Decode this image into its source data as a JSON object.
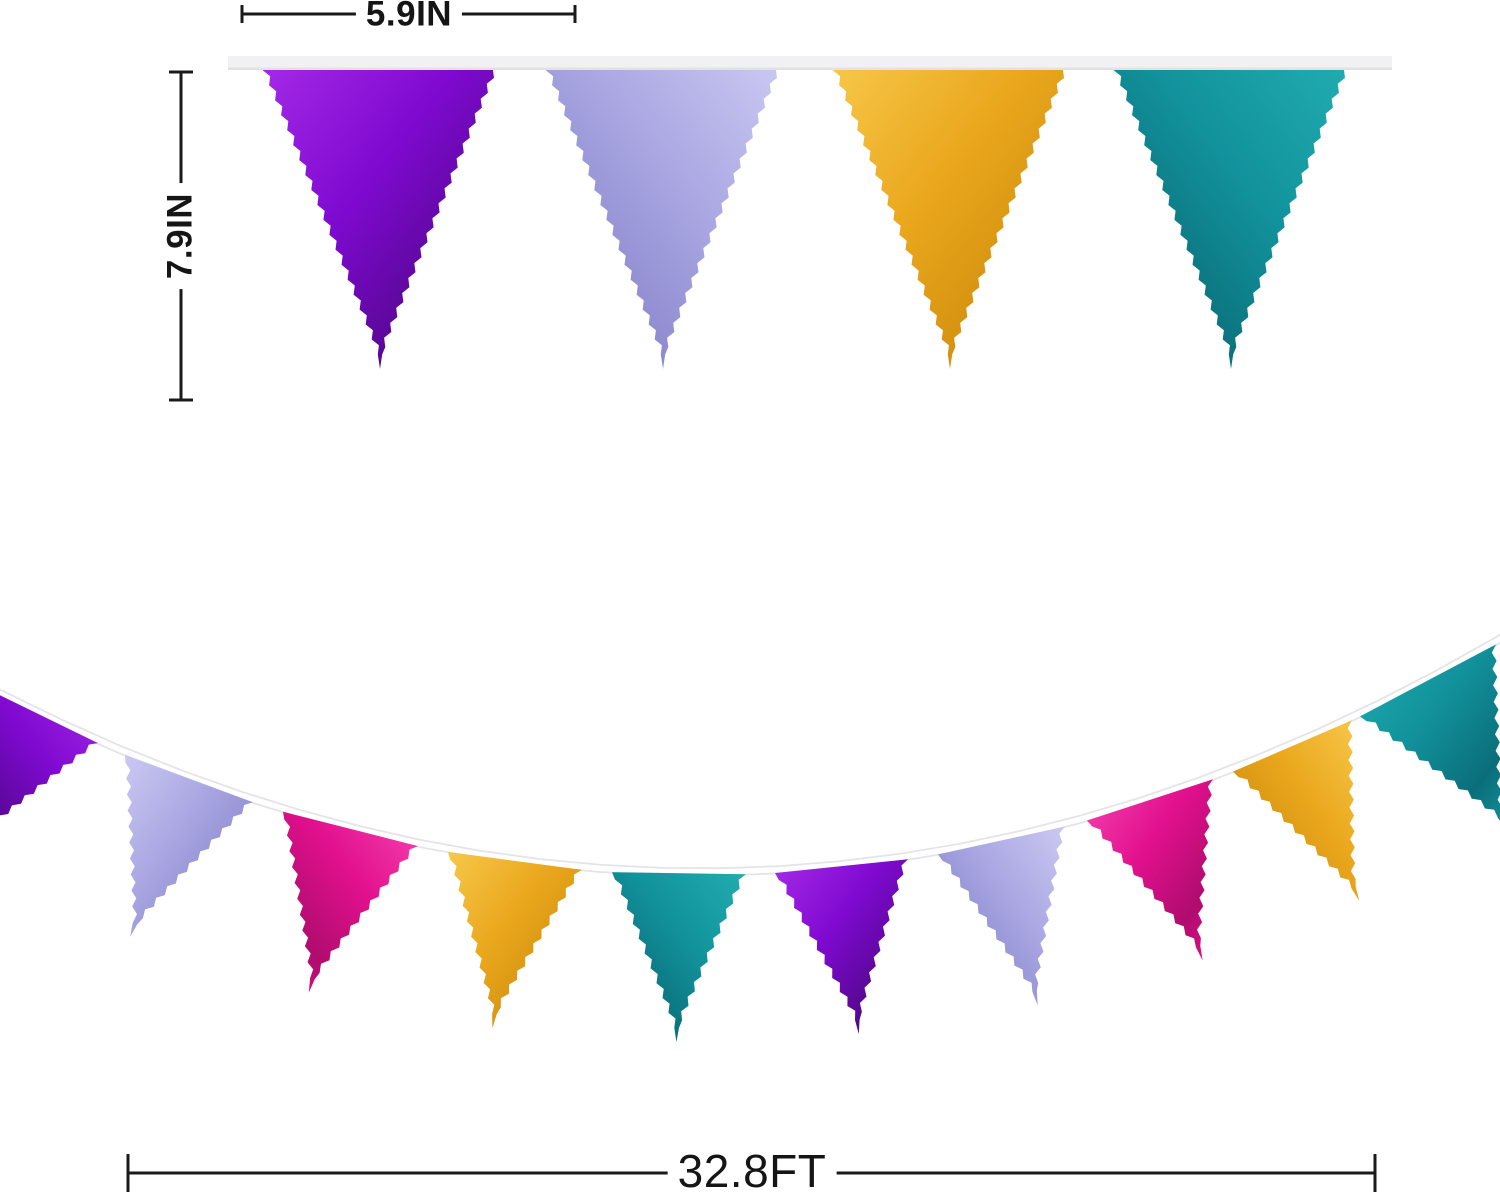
{
  "product_diagram": {
    "dimensions": {
      "flag_width": "5.9IN",
      "flag_height": "7.9IN",
      "banner_length": "32.8FT"
    },
    "palette": {
      "purple": {
        "base": "#7e09cf",
        "light": "#a62ae8",
        "dark": "#54088f"
      },
      "lavender": {
        "base": "#a9a6e2",
        "light": "#cbc9f2",
        "dark": "#8b87cd"
      },
      "gold": {
        "base": "#eaa71d",
        "light": "#f7c84a",
        "dark": "#d08f0e"
      },
      "teal": {
        "base": "#12929c",
        "light": "#21adb0",
        "dark": "#0a6e7a"
      },
      "magenta": {
        "base": "#e2108e",
        "light": "#f544af",
        "dark": "#b00c6e"
      },
      "ribbon": "#f1f1f3",
      "ribbon_edge": "#e2e2e6",
      "string_edge": "#e4e4e8",
      "string_core": "#ffffff",
      "dimension_line": "#1a1a1a",
      "background": "#ffffff"
    },
    "top_garland": {
      "flags": [
        "purple",
        "lavender",
        "gold",
        "teal"
      ]
    },
    "bottom_garland": {
      "flags": [
        "purple",
        "lavender",
        "magenta",
        "gold",
        "teal",
        "purple",
        "lavender",
        "magenta",
        "gold",
        "teal"
      ]
    }
  }
}
